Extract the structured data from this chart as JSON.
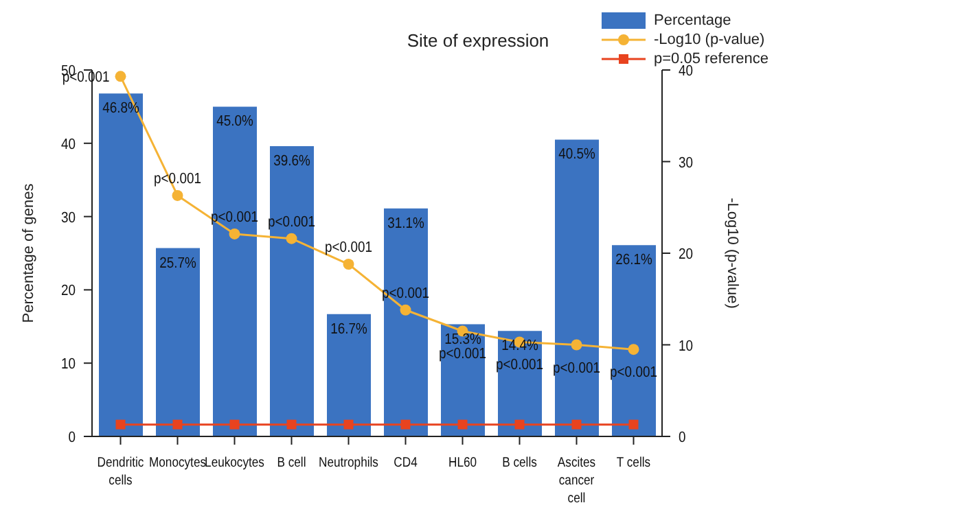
{
  "chart_data": {
    "type": "bar",
    "title": "Site of expression",
    "ylabel": "Percentage of genes",
    "y2label": "-Log10 (p-value)",
    "categories": [
      "Dendritic cells",
      "Monocytes",
      "Leukocytes",
      "B cell",
      "Neutrophils",
      "CD4",
      "HL60",
      "B cells",
      "Ascites cancer cell",
      "T cells"
    ],
    "series": [
      {
        "name": "Percentage",
        "color": "#3b73c1",
        "values": [
          46.8,
          25.7,
          45.0,
          39.6,
          16.7,
          31.1,
          15.3,
          14.4,
          40.5,
          26.1
        ],
        "value_labels": [
          "46.8%",
          "25.7%",
          "45.0%",
          "39.6%",
          "16.7%",
          "31.1%",
          "15.3%",
          "14.4%",
          "40.5%",
          "26.1%"
        ]
      },
      {
        "name": "-Log10 (p-value)",
        "type": "line",
        "axis": "y2",
        "color": "#f5b335",
        "marker": "circle",
        "values": [
          39.3,
          26.3,
          22.1,
          21.6,
          18.8,
          13.8,
          11.5,
          10.3,
          10.0,
          9.5
        ]
      },
      {
        "name": "p=0.05 reference",
        "type": "line",
        "axis": "y2",
        "color": "#e8431f",
        "marker": "square",
        "values": [
          1.3,
          1.3,
          1.3,
          1.3,
          1.3,
          1.3,
          1.3,
          1.3,
          1.3,
          1.3
        ]
      }
    ],
    "ylim": [
      0,
      50
    ],
    "yticks": [
      0,
      10,
      20,
      30,
      40,
      50
    ],
    "y2lim": [
      0,
      40
    ],
    "y2ticks": [
      0,
      10,
      20,
      30,
      40
    ],
    "annotations": [
      "p<0.001",
      "p<0.001",
      "p<0.001",
      "p<0.001",
      "p<0.001",
      "p<0.001",
      "p<0.001",
      "p<0.001",
      "p<0.001",
      "p<0.001"
    ],
    "grid": false,
    "legend": "top right"
  }
}
